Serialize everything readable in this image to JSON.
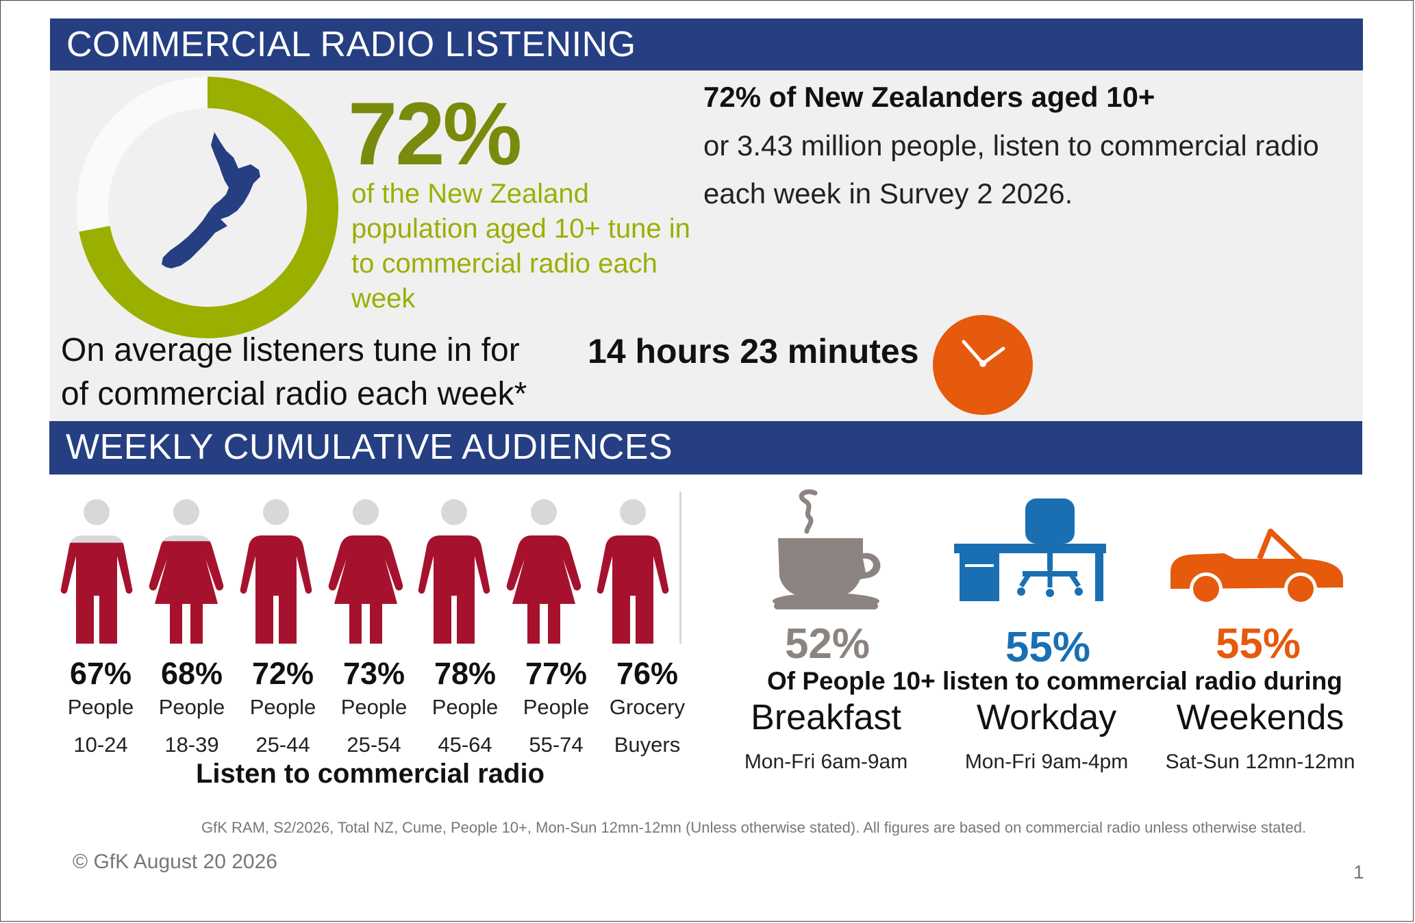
{
  "header": {
    "title": "COMMERCIAL RADIO LISTENING"
  },
  "headline": {
    "percent": "72%",
    "description": "of the New Zealand population aged 10+ tune in to commercial radio each week",
    "donut_fraction": 0.72,
    "right_heading": "72% of New Zealanders aged 10+",
    "right_body": "or 3.43 million people, listen to commercial radio each week in Survey 2 2026."
  },
  "listening_time": {
    "line1": "On average listeners tune in for",
    "line2": "of commercial radio each week*",
    "hours": "14 hours 23 minutes"
  },
  "section2": {
    "title": "WEEKLY CUMULATIVE AUDIENCES"
  },
  "demographics": [
    {
      "percent": "67%",
      "label1": "People",
      "label2": "10-24",
      "fraction": 0.67,
      "figure": "male"
    },
    {
      "percent": "68%",
      "label1": "People",
      "label2": "18-39",
      "fraction": 0.68,
      "figure": "female"
    },
    {
      "percent": "72%",
      "label1": "People",
      "label2": "25-44",
      "fraction": 0.72,
      "figure": "male"
    },
    {
      "percent": "73%",
      "label1": "People",
      "label2": "25-54",
      "fraction": 0.73,
      "figure": "female"
    },
    {
      "percent": "78%",
      "label1": "People",
      "label2": "45-64",
      "fraction": 0.78,
      "figure": "male"
    },
    {
      "percent": "77%",
      "label1": "People",
      "label2": "55-74",
      "fraction": 0.77,
      "figure": "female"
    },
    {
      "percent": "76%",
      "label1": "Grocery",
      "label2": "Buyers",
      "fraction": 0.76,
      "figure": "male"
    }
  ],
  "demographics_caption": "Listen to commercial radio",
  "dayparts_caption": "Of People 10+ listen to commercial radio during",
  "dayparts": [
    {
      "percent": "52%",
      "name": "Breakfast",
      "time": "Mon-Fri 6am-9am",
      "icon": "coffee-cup-icon",
      "color": "#8c8480"
    },
    {
      "percent": "55%",
      "name": "Workday",
      "time": "Mon-Fri 9am-4pm",
      "icon": "office-desk-icon",
      "color": "#1a6fb2"
    },
    {
      "percent": "55%",
      "name": "Weekends",
      "time": "Sat-Sun 12mn-12mn",
      "icon": "convertible-car-icon",
      "color": "#e55a0c"
    }
  ],
  "colors": {
    "banner": "#253f82",
    "donut": "#9aaf00",
    "figure_fill": "#a6122d",
    "figure_empty": "#d8d8d8",
    "clock": "#e55a0c"
  },
  "footer": {
    "source": "GfK RAM, S2/2026, Total NZ, Cume, People 10+, Mon-Sun 12mn-12mn (Unless otherwise stated). All figures are based on commercial radio unless otherwise stated.",
    "copyright": "© GfK August 20 2026",
    "page": "1"
  }
}
